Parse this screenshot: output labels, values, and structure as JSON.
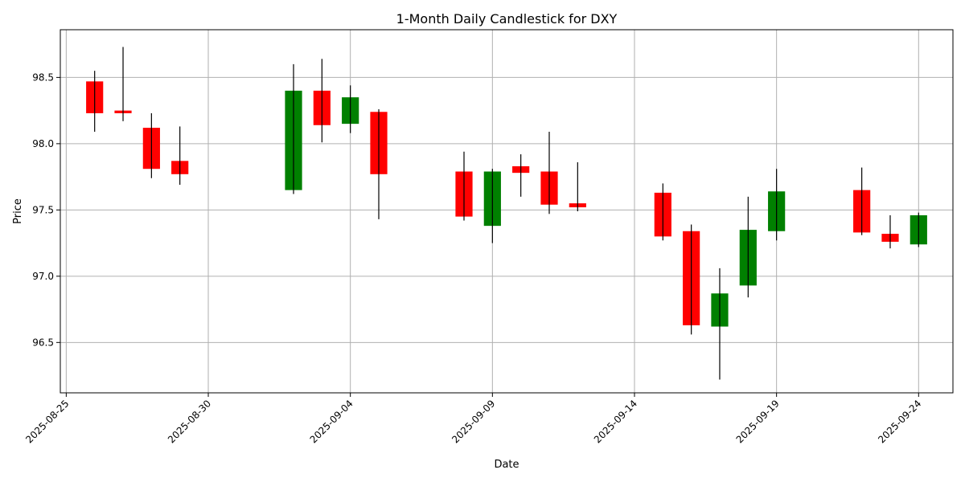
{
  "chart_data": {
    "type": "candlestick",
    "title": "1-Month Daily Candlestick for DXY",
    "xlabel": "Date",
    "ylabel": "Price",
    "grid": true,
    "xlim": [
      "2025-08-24T19:00",
      "2025-09-25T05:00"
    ],
    "ylim": [
      96.12,
      98.86
    ],
    "x_ticks": [
      "2025-08-25",
      "2025-08-30",
      "2025-09-04",
      "2025-09-09",
      "2025-09-14",
      "2025-09-19",
      "2025-09-24"
    ],
    "y_ticks": [
      96.5,
      97.0,
      97.5,
      98.0,
      98.5
    ],
    "colors": {
      "up": "#008000",
      "down": "#ff0000",
      "wick": "#000000"
    },
    "candles": [
      {
        "date": "2025-08-26",
        "open": 98.47,
        "high": 98.55,
        "low": 98.09,
        "close": 98.23
      },
      {
        "date": "2025-08-27",
        "open": 98.25,
        "high": 98.73,
        "low": 98.17,
        "close": 98.23
      },
      {
        "date": "2025-08-28",
        "open": 98.12,
        "high": 98.23,
        "low": 97.74,
        "close": 97.81
      },
      {
        "date": "2025-08-29",
        "open": 97.87,
        "high": 98.13,
        "low": 97.69,
        "close": 97.77
      },
      {
        "date": "2025-09-02",
        "open": 97.65,
        "high": 98.6,
        "low": 97.62,
        "close": 98.4
      },
      {
        "date": "2025-09-03",
        "open": 98.4,
        "high": 98.64,
        "low": 98.01,
        "close": 98.14
      },
      {
        "date": "2025-09-04",
        "open": 98.15,
        "high": 98.44,
        "low": 98.08,
        "close": 98.35
      },
      {
        "date": "2025-09-05",
        "open": 98.24,
        "high": 98.26,
        "low": 97.43,
        "close": 97.77
      },
      {
        "date": "2025-09-08",
        "open": 97.79,
        "high": 97.94,
        "low": 97.42,
        "close": 97.45
      },
      {
        "date": "2025-09-09",
        "open": 97.38,
        "high": 97.81,
        "low": 97.25,
        "close": 97.79
      },
      {
        "date": "2025-09-10",
        "open": 97.83,
        "high": 97.92,
        "low": 97.6,
        "close": 97.78
      },
      {
        "date": "2025-09-11",
        "open": 97.79,
        "high": 98.09,
        "low": 97.47,
        "close": 97.54
      },
      {
        "date": "2025-09-12",
        "open": 97.55,
        "high": 97.86,
        "low": 97.49,
        "close": 97.52
      },
      {
        "date": "2025-09-15",
        "open": 97.63,
        "high": 97.7,
        "low": 97.27,
        "close": 97.3
      },
      {
        "date": "2025-09-16",
        "open": 97.34,
        "high": 97.39,
        "low": 96.56,
        "close": 96.63
      },
      {
        "date": "2025-09-17",
        "open": 96.62,
        "high": 97.06,
        "low": 96.22,
        "close": 96.87
      },
      {
        "date": "2025-09-18",
        "open": 96.93,
        "high": 97.6,
        "low": 96.84,
        "close": 97.35
      },
      {
        "date": "2025-09-19",
        "open": 97.34,
        "high": 97.81,
        "low": 97.27,
        "close": 97.64
      },
      {
        "date": "2025-09-22",
        "open": 97.65,
        "high": 97.82,
        "low": 97.31,
        "close": 97.33
      },
      {
        "date": "2025-09-23",
        "open": 97.32,
        "high": 97.46,
        "low": 97.21,
        "close": 97.26
      },
      {
        "date": "2025-09-24",
        "open": 97.24,
        "high": 97.48,
        "low": 97.22,
        "close": 97.46
      }
    ]
  }
}
